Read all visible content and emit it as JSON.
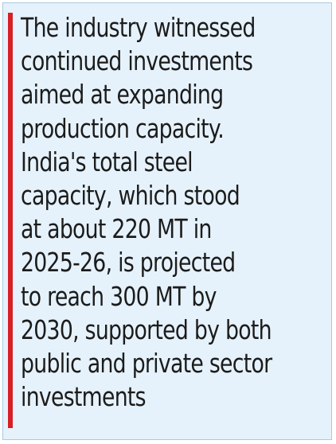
{
  "callout": {
    "accent_color": "#d71f26",
    "background_color": "#e6f2fb",
    "lines": [
      "The industry witnessed",
      "continued investments",
      "aimed at expanding",
      "production capacity.",
      "India's total steel",
      "capacity, which stood",
      "at about 220 MT in",
      "2025-26, is projected",
      "to reach 300 MT by",
      "2030, supported by both",
      "public and private sector",
      "investments"
    ]
  }
}
